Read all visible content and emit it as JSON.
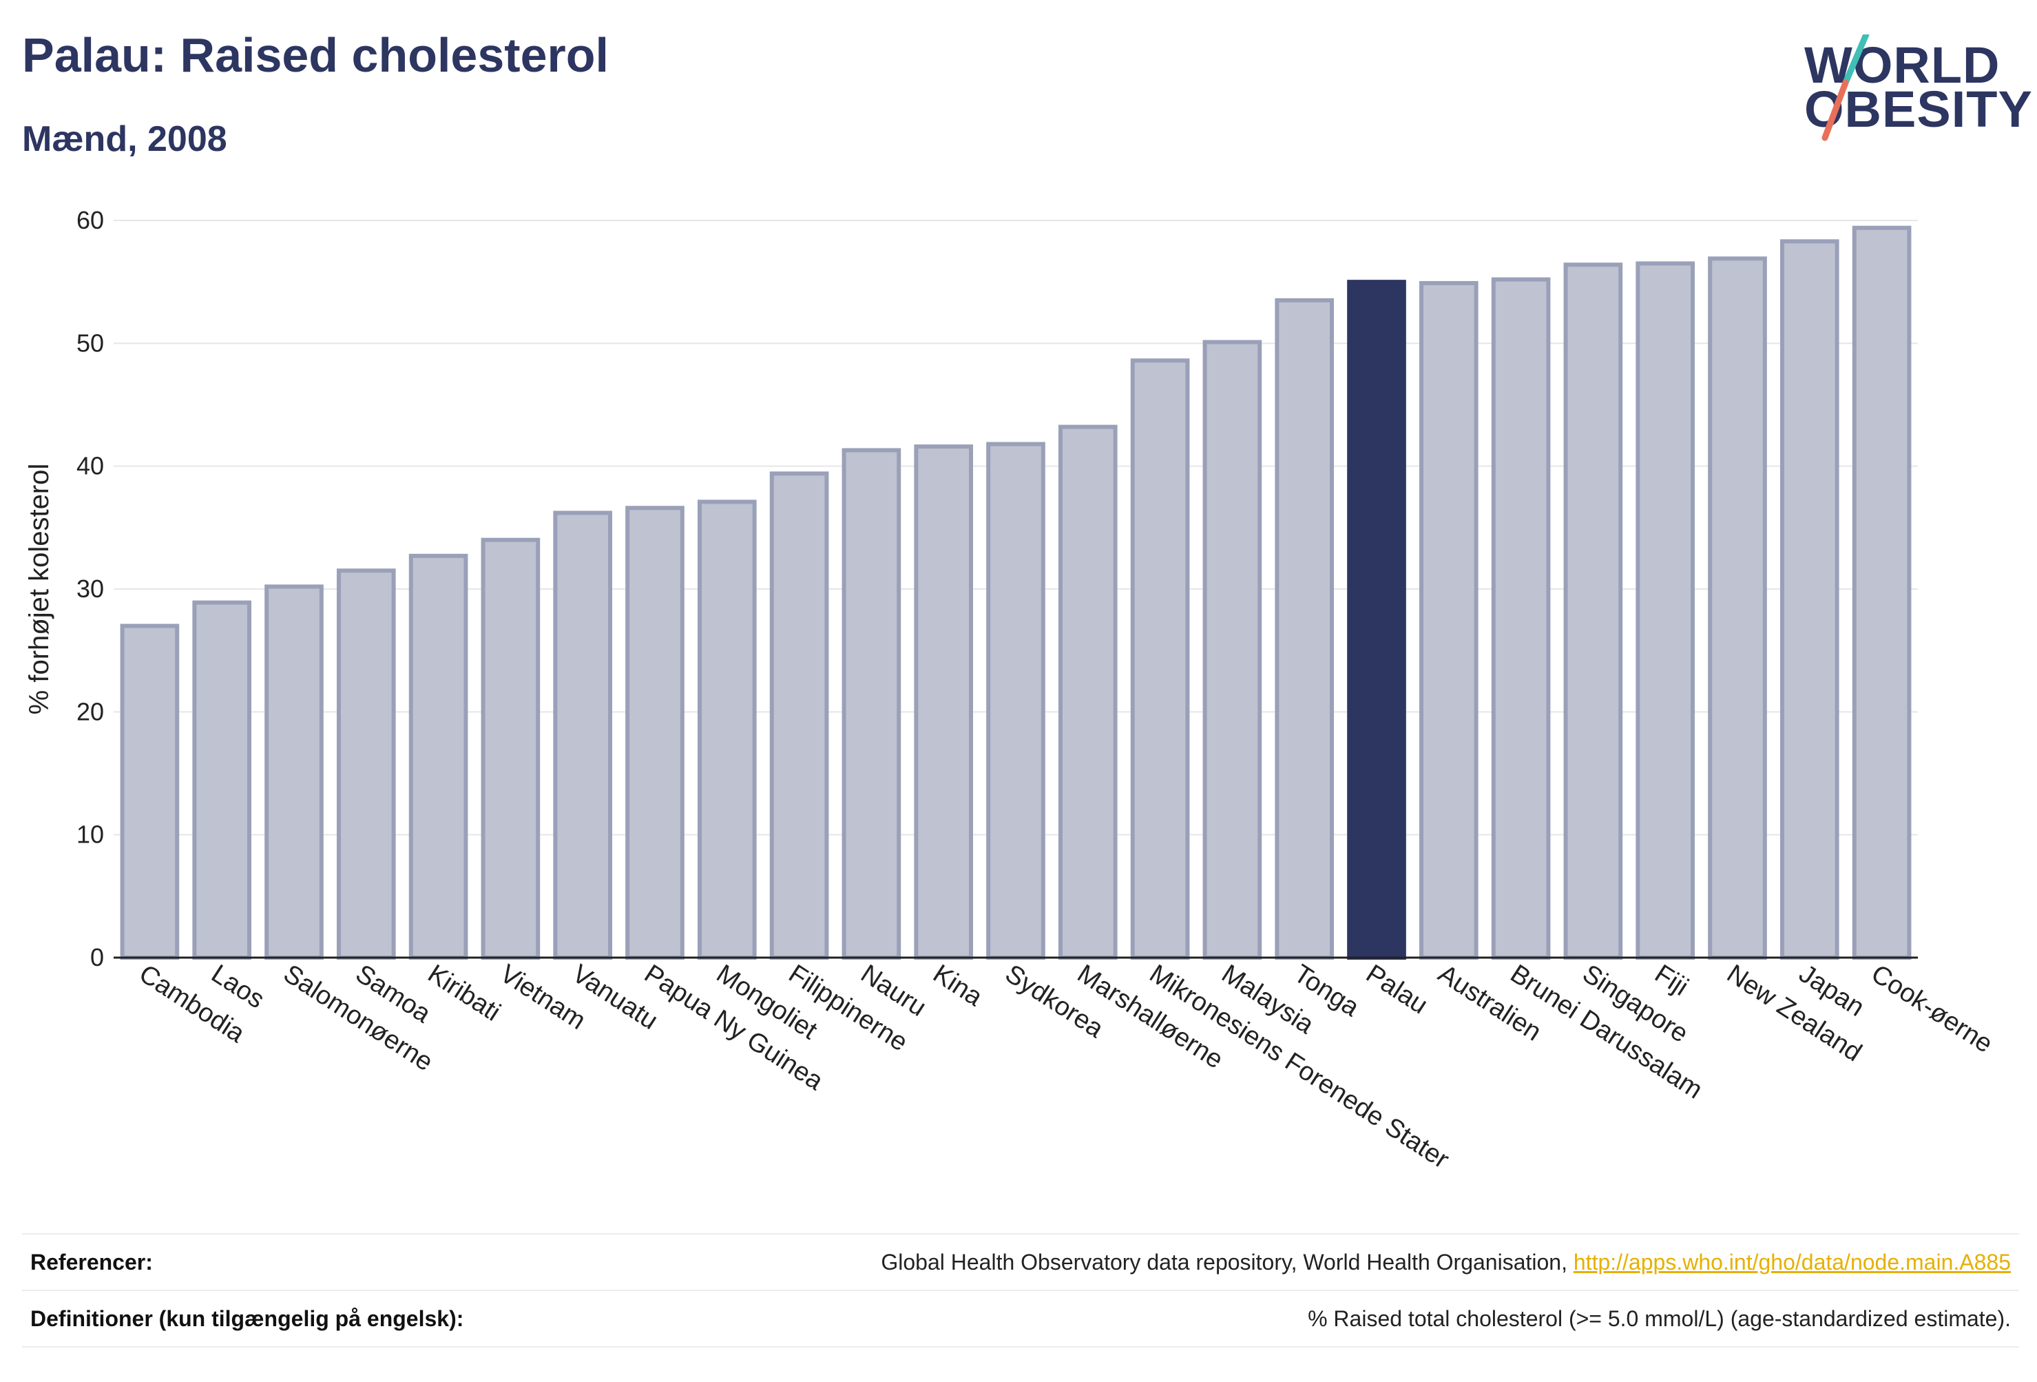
{
  "header": {
    "title": "Palau: Raised cholesterol",
    "subtitle": "Mænd, 2008"
  },
  "logo": {
    "line1": "WORLD",
    "line2": "OBESITY",
    "accent_colors": [
      "#3fbfb5",
      "#e8705a"
    ]
  },
  "colors": {
    "bar_default": "#bfc2d0",
    "bar_default_stroke": "#9aa0b8",
    "bar_highlight": "#2d3561",
    "text_dark": "#2d3561",
    "link": "#e6b000"
  },
  "chart_data": {
    "type": "bar",
    "title": "Palau: Raised cholesterol",
    "subtitle": "Mænd, 2008",
    "xlabel": "",
    "ylabel": "% forhøjet kolesterol",
    "ylim": [
      0,
      60
    ],
    "yticks": [
      0,
      10,
      20,
      30,
      40,
      50,
      60
    ],
    "grid": true,
    "highlight": "Palau",
    "categories": [
      "Cambodia",
      "Laos",
      "Salomonøerne",
      "Samoa",
      "Kiribati",
      "Vietnam",
      "Vanuatu",
      "Papua Ny Guinea",
      "Mongoliet",
      "Filippinerne",
      "Nauru",
      "Kina",
      "Sydkorea",
      "Marshalløerne",
      "Mikronesiens Forenede Stater",
      "Malaysia",
      "Tonga",
      "Palau",
      "Australien",
      "Brunei Darussalam",
      "Singapore",
      "Fiji",
      "New Zealand",
      "Japan",
      "Cook-øerne"
    ],
    "values": [
      27.0,
      28.9,
      30.2,
      31.5,
      32.7,
      34.0,
      36.2,
      36.6,
      37.1,
      39.4,
      41.3,
      41.6,
      41.8,
      43.2,
      48.6,
      50.1,
      53.5,
      55.0,
      54.9,
      55.2,
      56.4,
      56.5,
      56.9,
      58.3,
      59.4
    ]
  },
  "references": {
    "label": "Referencer:",
    "text": "Global Health Observatory data repository, World Health Organisation, ",
    "link": "http://apps.who.int/gho/data/node.main.A885"
  },
  "definitions": {
    "label": "Definitioner (kun tilgængelig på engelsk):",
    "text": "% Raised total cholesterol (>= 5.0 mmol/L) (age-standardized estimate)."
  }
}
